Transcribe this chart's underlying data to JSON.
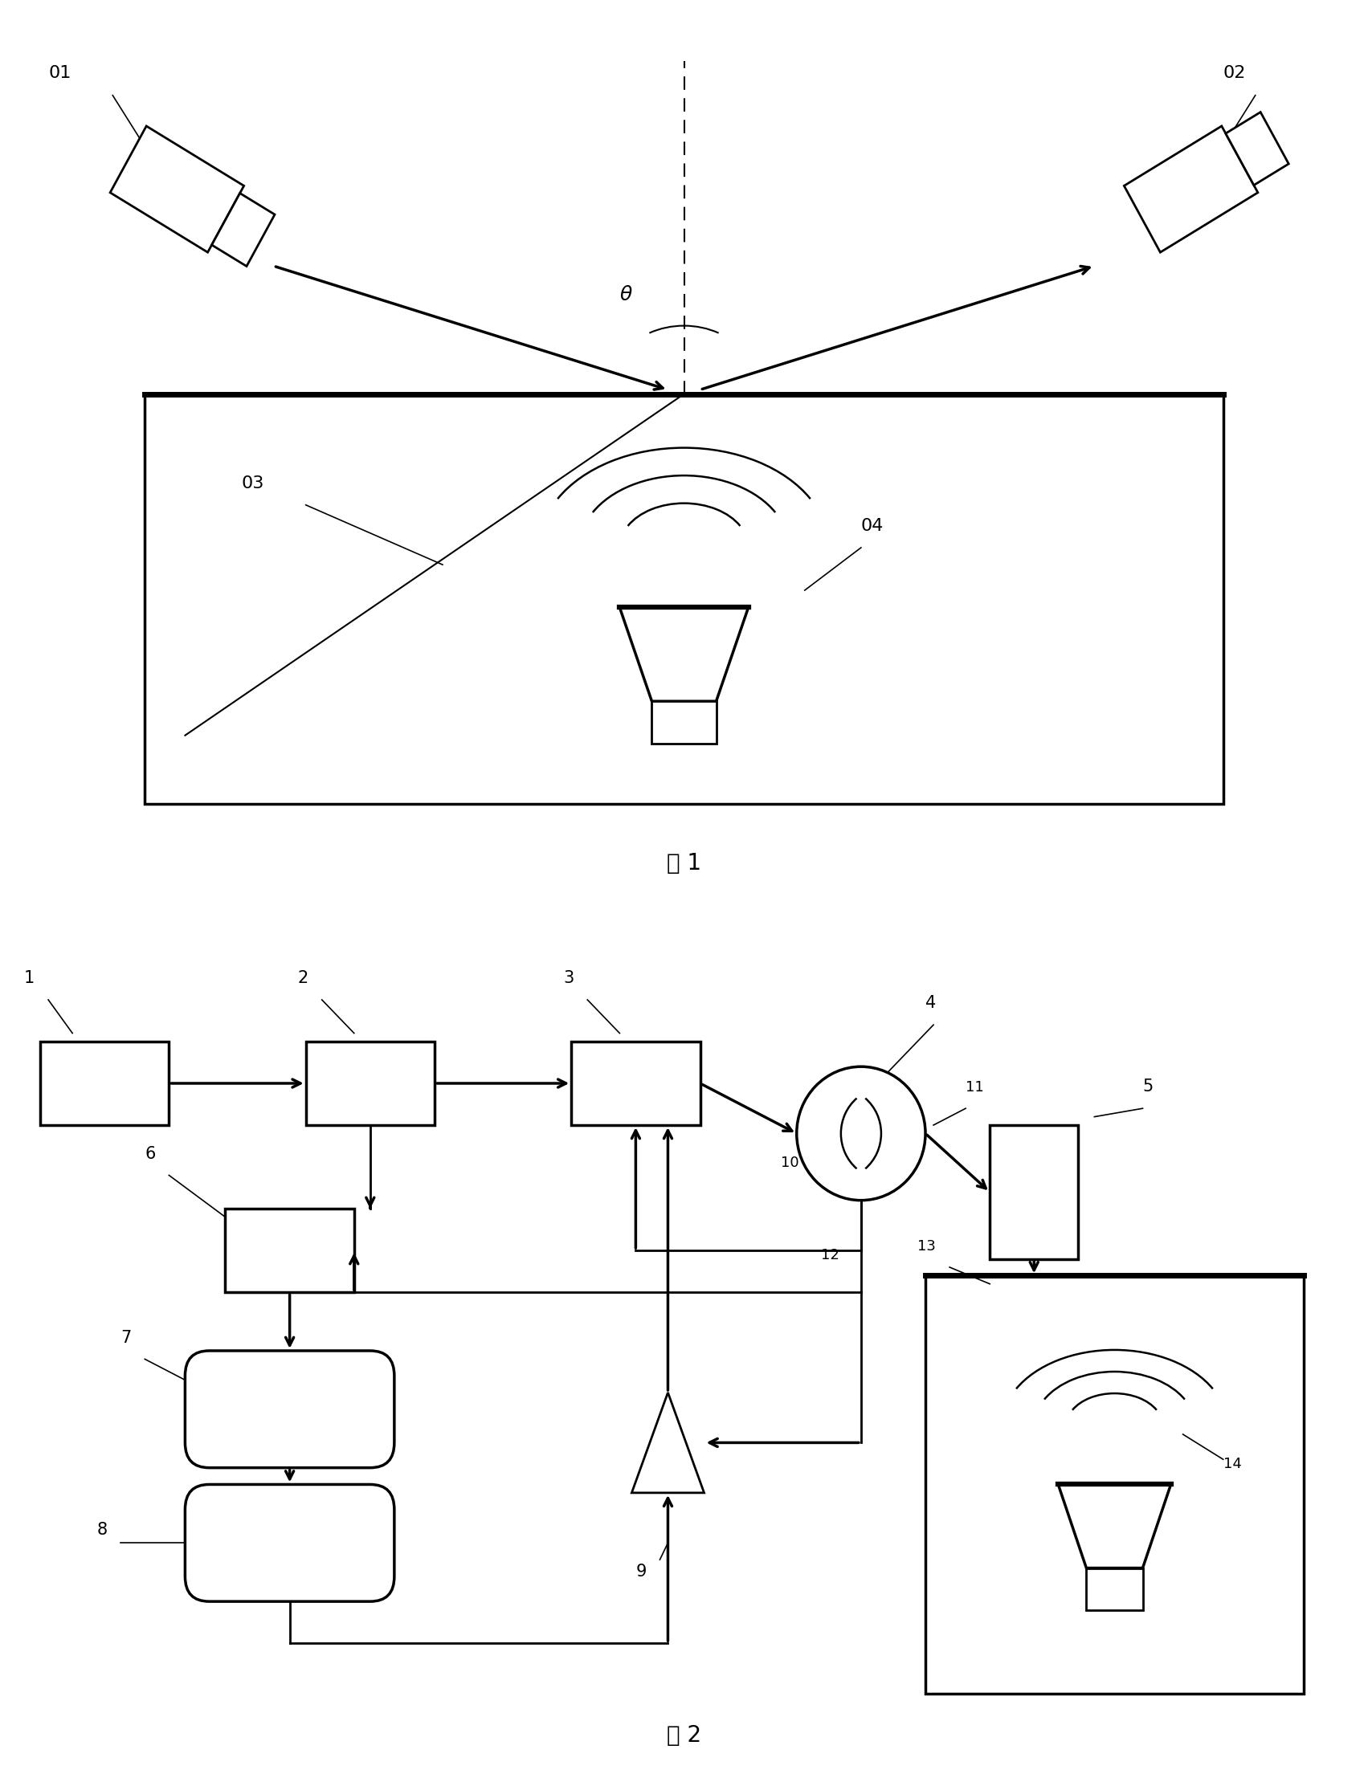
{
  "fig_width": 17.03,
  "fig_height": 22.14,
  "bg_color": "#ffffff",
  "lc": "#000000",
  "fig1_caption": "图 1",
  "fig2_caption": "图 2"
}
